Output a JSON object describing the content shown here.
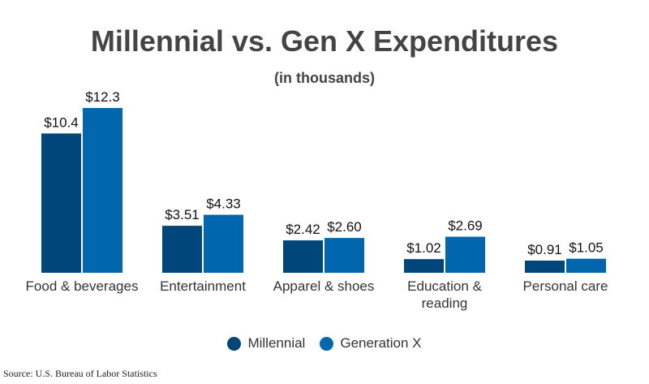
{
  "chart_data": {
    "type": "bar",
    "title": "Millennial vs. Gen X Expenditures",
    "subtitle": "(in thousands)",
    "categories": [
      "Food & beverages",
      "Entertainment",
      "Apparel & shoes",
      "Education & reading",
      "Personal care"
    ],
    "category_label_lines": [
      [
        "Food & beverages"
      ],
      [
        "Entertainment"
      ],
      [
        "Apparel & shoes"
      ],
      [
        "Education &",
        "reading"
      ],
      [
        "Personal care"
      ]
    ],
    "series": [
      {
        "name": "Millennial",
        "color": "#00467a",
        "values": [
          10.4,
          3.51,
          2.42,
          1.02,
          0.91
        ],
        "labels": [
          "$10.4",
          "$3.51",
          "$2.42",
          "$1.02",
          "$0.91"
        ]
      },
      {
        "name": "Generation X",
        "color": "#0067ae",
        "values": [
          12.3,
          4.33,
          2.6,
          2.69,
          1.05
        ],
        "labels": [
          "$12.3",
          "$4.33",
          "$2.60",
          "$2.69",
          "$1.05"
        ]
      }
    ],
    "grid": false,
    "legend_position": "bottom-center"
  },
  "source": "Source: U.S. Bureau of Labor Statistics"
}
